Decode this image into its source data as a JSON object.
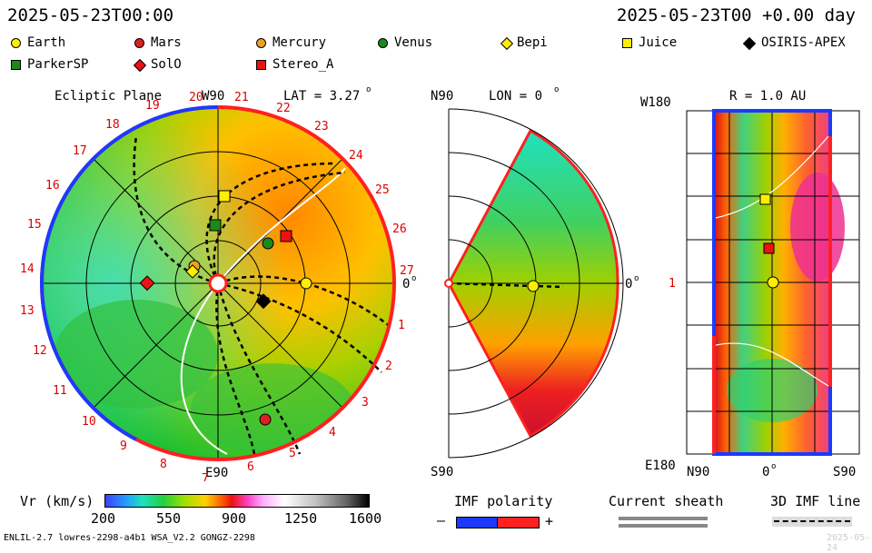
{
  "header": {
    "left_time": "2025-05-23T00:00",
    "right_time": "2025-05-23T00 +0.00 day"
  },
  "legend": [
    {
      "label": "Earth",
      "shape": "circle",
      "color": "#ffee00"
    },
    {
      "label": "Mars",
      "shape": "circle",
      "color": "#dd2020"
    },
    {
      "label": "Mercury",
      "shape": "circle",
      "color": "#f0a020"
    },
    {
      "label": "Venus",
      "shape": "circle",
      "color": "#1a8a1a"
    },
    {
      "label": "Bepi",
      "shape": "diamond",
      "color": "#ffee00"
    },
    {
      "label": "Juice",
      "shape": "square",
      "color": "#ffee00"
    },
    {
      "label": "OSIRIS-APEX",
      "shape": "diamond",
      "color": "#000000"
    },
    {
      "label": "ParkerSP",
      "shape": "square",
      "color": "#1a8a1a"
    },
    {
      "label": "SolO",
      "shape": "diamond",
      "color": "#ee1111"
    },
    {
      "label": "Stereo_A",
      "shape": "square",
      "color": "#ee1111"
    }
  ],
  "ecliptic": {
    "title": "Ecliptic Plane",
    "w90": "W90",
    "e90": "E90",
    "lat": "LAT = 3.27",
    "lat_deg": "o",
    "zero": "0",
    "zero_deg": "o",
    "sectors": [
      "20",
      "21",
      "22",
      "23",
      "24",
      "25",
      "26",
      "27",
      "1",
      "2",
      "3",
      "4",
      "5",
      "6",
      "7",
      "8",
      "9",
      "10",
      "11",
      "12",
      "13",
      "14",
      "15",
      "16",
      "17",
      "18",
      "19"
    ]
  },
  "meridional": {
    "n90": "N90",
    "s90": "S90",
    "lon": "LON = 0",
    "lon_deg": "o",
    "zero": "0",
    "zero_deg": "o"
  },
  "rect": {
    "w180": "W180",
    "e180": "E180",
    "r": "R = 1.0 AU",
    "n90": "N90",
    "zero": "0",
    "zero_deg": "o",
    "s90": "S90",
    "one": "1"
  },
  "colorbar": {
    "label": "Vr (km/s)",
    "ticks": [
      "200",
      "550",
      "900",
      "1250",
      "1600"
    ]
  },
  "imf": {
    "label": "IMF polarity",
    "minus": "–",
    "plus": "+"
  },
  "sheath": {
    "label": "Current sheath"
  },
  "imfline": {
    "label": "3D IMF line"
  },
  "footer": {
    "left": "ENLIL-2.7 lowres-2298-a4b1 WSA_V2.2 GONGZ-2298",
    "right": "2025-05-24"
  }
}
